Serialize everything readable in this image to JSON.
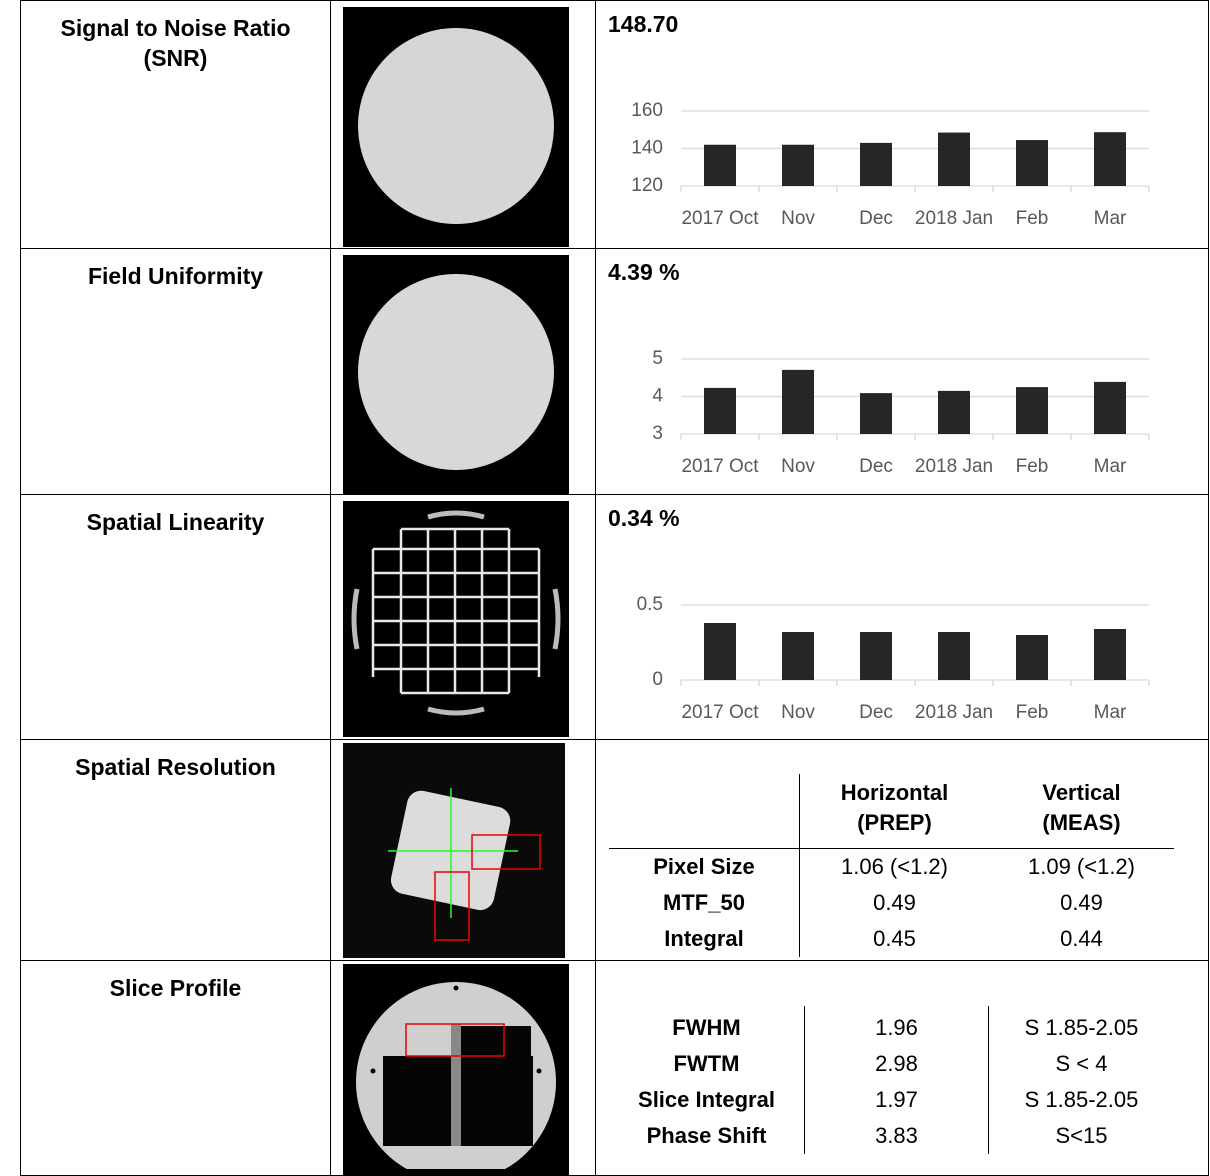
{
  "rows": [
    {
      "label": "Signal to Noise Ratio (SNR)",
      "result": "148.70",
      "chart": {
        "type": "bar",
        "categories": [
          "2017 Oct",
          "Nov",
          "Dec",
          "2018 Jan",
          "Feb",
          "Mar"
        ],
        "values": [
          142,
          142,
          143,
          148.5,
          144.5,
          148.7
        ],
        "color": "#262626",
        "ylim": [
          120,
          160
        ],
        "yticks": [
          120,
          140,
          160
        ],
        "grid": true
      }
    },
    {
      "label": "Field Uniformity",
      "result": "4.39 %",
      "chart": {
        "type": "bar",
        "categories": [
          "2017 Oct",
          "Nov",
          "Dec",
          "2018 Jan",
          "Feb",
          "Mar"
        ],
        "values": [
          4.23,
          4.71,
          4.09,
          4.15,
          4.25,
          4.39
        ],
        "color": "#262626",
        "ylim": [
          3,
          5
        ],
        "yticks": [
          3,
          4,
          5
        ],
        "grid": true
      }
    },
    {
      "label": "Spatial Linearity",
      "result": "0.34 %",
      "chart": {
        "type": "bar",
        "categories": [
          "2017 Oct",
          "Nov",
          "Dec",
          "2018 Jan",
          "Feb",
          "Mar"
        ],
        "values": [
          0.38,
          0.32,
          0.32,
          0.32,
          0.3,
          0.34
        ],
        "color": "#262626",
        "ylim": [
          0,
          0.5
        ],
        "yticks": [
          0,
          0.5
        ],
        "grid": true
      }
    },
    {
      "label": "Spatial Resolution",
      "table": {
        "columns": [
          "Horizontal (PREP)",
          "Vertical (MEAS)"
        ],
        "rows": [
          {
            "label": "Pixel Size",
            "values": [
              "1.06 (<1.2)",
              "1.09 (<1.2)"
            ]
          },
          {
            "label": "MTF_50",
            "values": [
              "0.49",
              "0.49"
            ]
          },
          {
            "label": "Integral",
            "values": [
              "0.45",
              "0.44"
            ]
          }
        ]
      }
    },
    {
      "label": "Slice Profile",
      "table": {
        "rows": [
          {
            "label": "FWHM",
            "values": [
              "1.96",
              "S 1.85-2.05"
            ]
          },
          {
            "label": "FWTM",
            "values": [
              "2.98",
              "S < 4"
            ]
          },
          {
            "label": "Slice Integral",
            "values": [
              "1.97",
              "S 1.85-2.05"
            ]
          },
          {
            "label": "Phase Shift",
            "values": [
              "3.83",
              "S<15"
            ]
          }
        ]
      }
    }
  ]
}
